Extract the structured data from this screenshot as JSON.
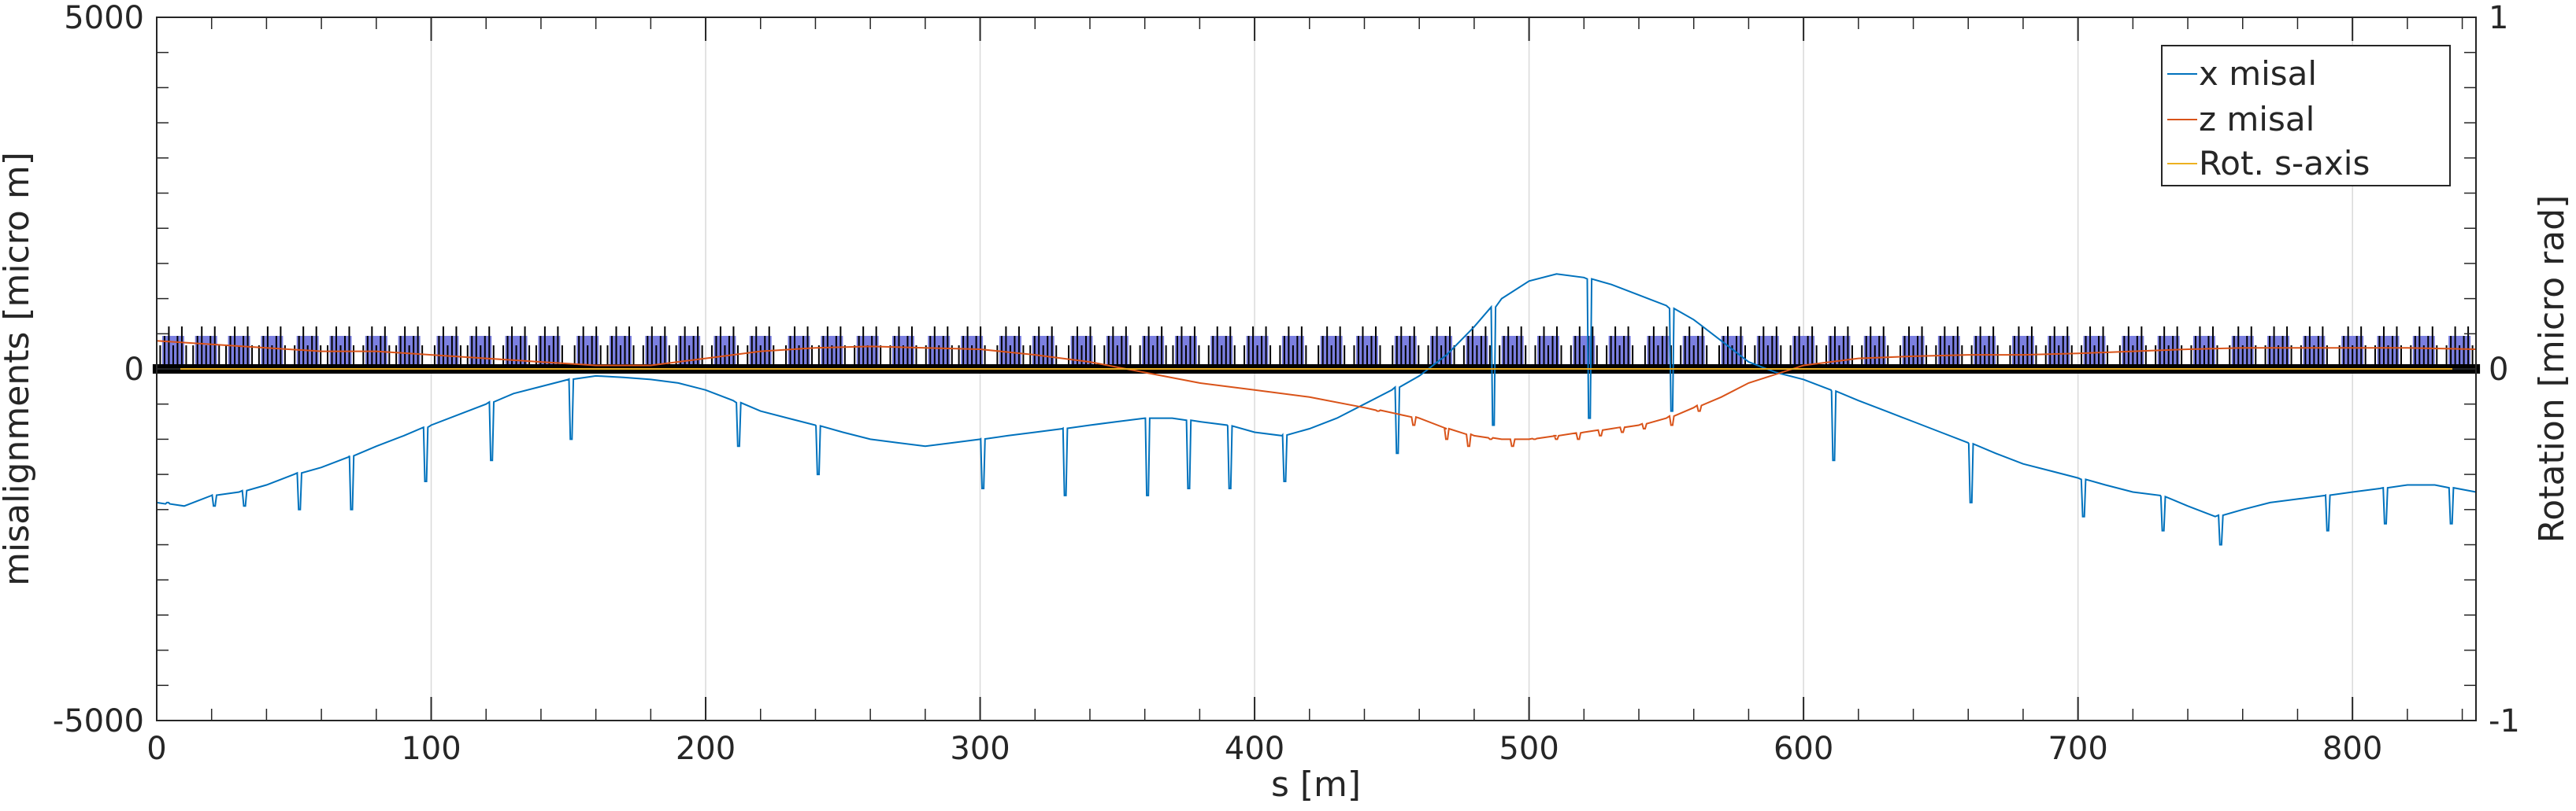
{
  "chart_data": {
    "type": "line",
    "xlabel": "s [m]",
    "ylabel": "misalignments [micro m]",
    "y2label": "Rotation [micro rad]",
    "xlim": [
      0,
      845
    ],
    "ylim": [
      -5000,
      5000
    ],
    "y2lim": [
      -1,
      1
    ],
    "xticks": [
      0,
      100,
      200,
      300,
      400,
      500,
      600,
      700,
      800
    ],
    "yticks": [
      -5000,
      0,
      5000
    ],
    "y2ticks": [
      -1,
      0,
      1
    ],
    "grid": "vertical",
    "legend_position": "top-right",
    "series": [
      {
        "name": "x misal",
        "color": "#0072BD",
        "x": [
          0,
          10,
          20,
          30,
          40,
          50,
          60,
          70,
          80,
          90,
          100,
          110,
          120,
          130,
          140,
          150,
          160,
          170,
          180,
          190,
          200,
          210,
          220,
          230,
          240,
          250,
          260,
          270,
          280,
          290,
          300,
          310,
          320,
          330,
          340,
          350,
          360,
          370,
          380,
          390,
          400,
          410,
          420,
          430,
          440,
          450,
          460,
          470,
          480,
          490,
          500,
          510,
          520,
          530,
          540,
          550,
          560,
          570,
          580,
          590,
          600,
          610,
          620,
          630,
          640,
          650,
          660,
          670,
          680,
          690,
          700,
          710,
          720,
          730,
          740,
          750,
          760,
          770,
          780,
          790,
          800,
          810,
          820,
          830,
          845
        ],
        "y": [
          -1900,
          -1950,
          -1800,
          -1750,
          -1650,
          -1500,
          -1400,
          -1250,
          -1100,
          -950,
          -800,
          -650,
          -500,
          -350,
          -250,
          -150,
          -100,
          -120,
          -150,
          -200,
          -300,
          -450,
          -600,
          -700,
          -800,
          -900,
          -1000,
          -1050,
          -1100,
          -1050,
          -1000,
          -950,
          -900,
          -850,
          -800,
          -750,
          -700,
          -700,
          -750,
          -800,
          -900,
          -950,
          -850,
          -700,
          -500,
          -300,
          -100,
          200,
          600,
          1000,
          1250,
          1350,
          1300,
          1200,
          1050,
          900,
          700,
          400,
          100,
          -50,
          -150,
          -300,
          -450,
          -600,
          -750,
          -900,
          -1050,
          -1200,
          -1350,
          -1450,
          -1550,
          -1650,
          -1750,
          -1800,
          -1950,
          -2100,
          -2000,
          -1900,
          -1850,
          -1800,
          -1750,
          -1700,
          -1650,
          -1650,
          -1750
        ],
        "spikes": {
          "x": [
            4,
            21,
            32,
            52,
            71,
            98,
            122,
            151,
            212,
            241,
            301,
            331,
            361,
            376,
            391,
            411,
            452,
            487,
            522,
            552,
            611,
            661,
            702,
            731,
            752,
            791,
            812,
            836
          ],
          "depth": [
            -1900,
            -1950,
            -1950,
            -2000,
            -2000,
            -1600,
            -1300,
            -1000,
            -1100,
            -1500,
            -1700,
            -1800,
            -1800,
            -1700,
            -1700,
            -1600,
            -1200,
            -800,
            -700,
            -600,
            -1300,
            -1900,
            -2100,
            -2300,
            -2500,
            -2300,
            -2200,
            -2200
          ]
        }
      },
      {
        "name": "z misal",
        "color": "#D95319",
        "x": [
          0,
          20,
          40,
          60,
          80,
          100,
          120,
          140,
          160,
          180,
          200,
          220,
          240,
          260,
          280,
          300,
          320,
          340,
          360,
          380,
          400,
          420,
          440,
          460,
          470,
          480,
          490,
          500,
          510,
          520,
          530,
          540,
          550,
          560,
          570,
          580,
          600,
          620,
          640,
          660,
          680,
          700,
          720,
          740,
          760,
          780,
          800,
          820,
          845
        ],
        "y": [
          400,
          350,
          300,
          250,
          250,
          200,
          150,
          100,
          50,
          50,
          150,
          250,
          300,
          320,
          300,
          280,
          200,
          100,
          -50,
          -200,
          -300,
          -400,
          -550,
          -700,
          -850,
          -950,
          -1000,
          -1000,
          -950,
          -900,
          -850,
          -800,
          -700,
          -550,
          -400,
          -200,
          50,
          150,
          180,
          200,
          200,
          220,
          250,
          280,
          300,
          300,
          300,
          300,
          280
        ],
        "spikes": {
          "x": [
            445,
            458,
            470,
            478,
            486,
            494,
            502,
            510,
            518,
            526,
            534,
            542,
            552,
            562
          ],
          "depth": [
            -600,
            -800,
            -1000,
            -1100,
            -1000,
            -1100,
            -1000,
            -1000,
            -1000,
            -950,
            -900,
            -850,
            -800,
            -600
          ]
        }
      },
      {
        "name": "Rot. s-axis",
        "color": "#EDB120",
        "x": [
          0,
          845
        ],
        "y": [
          0,
          0
        ]
      }
    ],
    "lattice_markers": {
      "color": "#000000",
      "fill": "#7b7fe0",
      "x": [
        6,
        18,
        30,
        42,
        55,
        67,
        80,
        92,
        106,
        118,
        131,
        143,
        157,
        169,
        182,
        194,
        207,
        220,
        234,
        246,
        259,
        272,
        285,
        297,
        311,
        323,
        337,
        350,
        363,
        375,
        388,
        401,
        414,
        428,
        441,
        455,
        468,
        481,
        494,
        507,
        520,
        533,
        547,
        560,
        574,
        587,
        600,
        613,
        626,
        640,
        653,
        666,
        680,
        693,
        706,
        720,
        733,
        746,
        760,
        773,
        786,
        800,
        813,
        826,
        839
      ]
    }
  }
}
